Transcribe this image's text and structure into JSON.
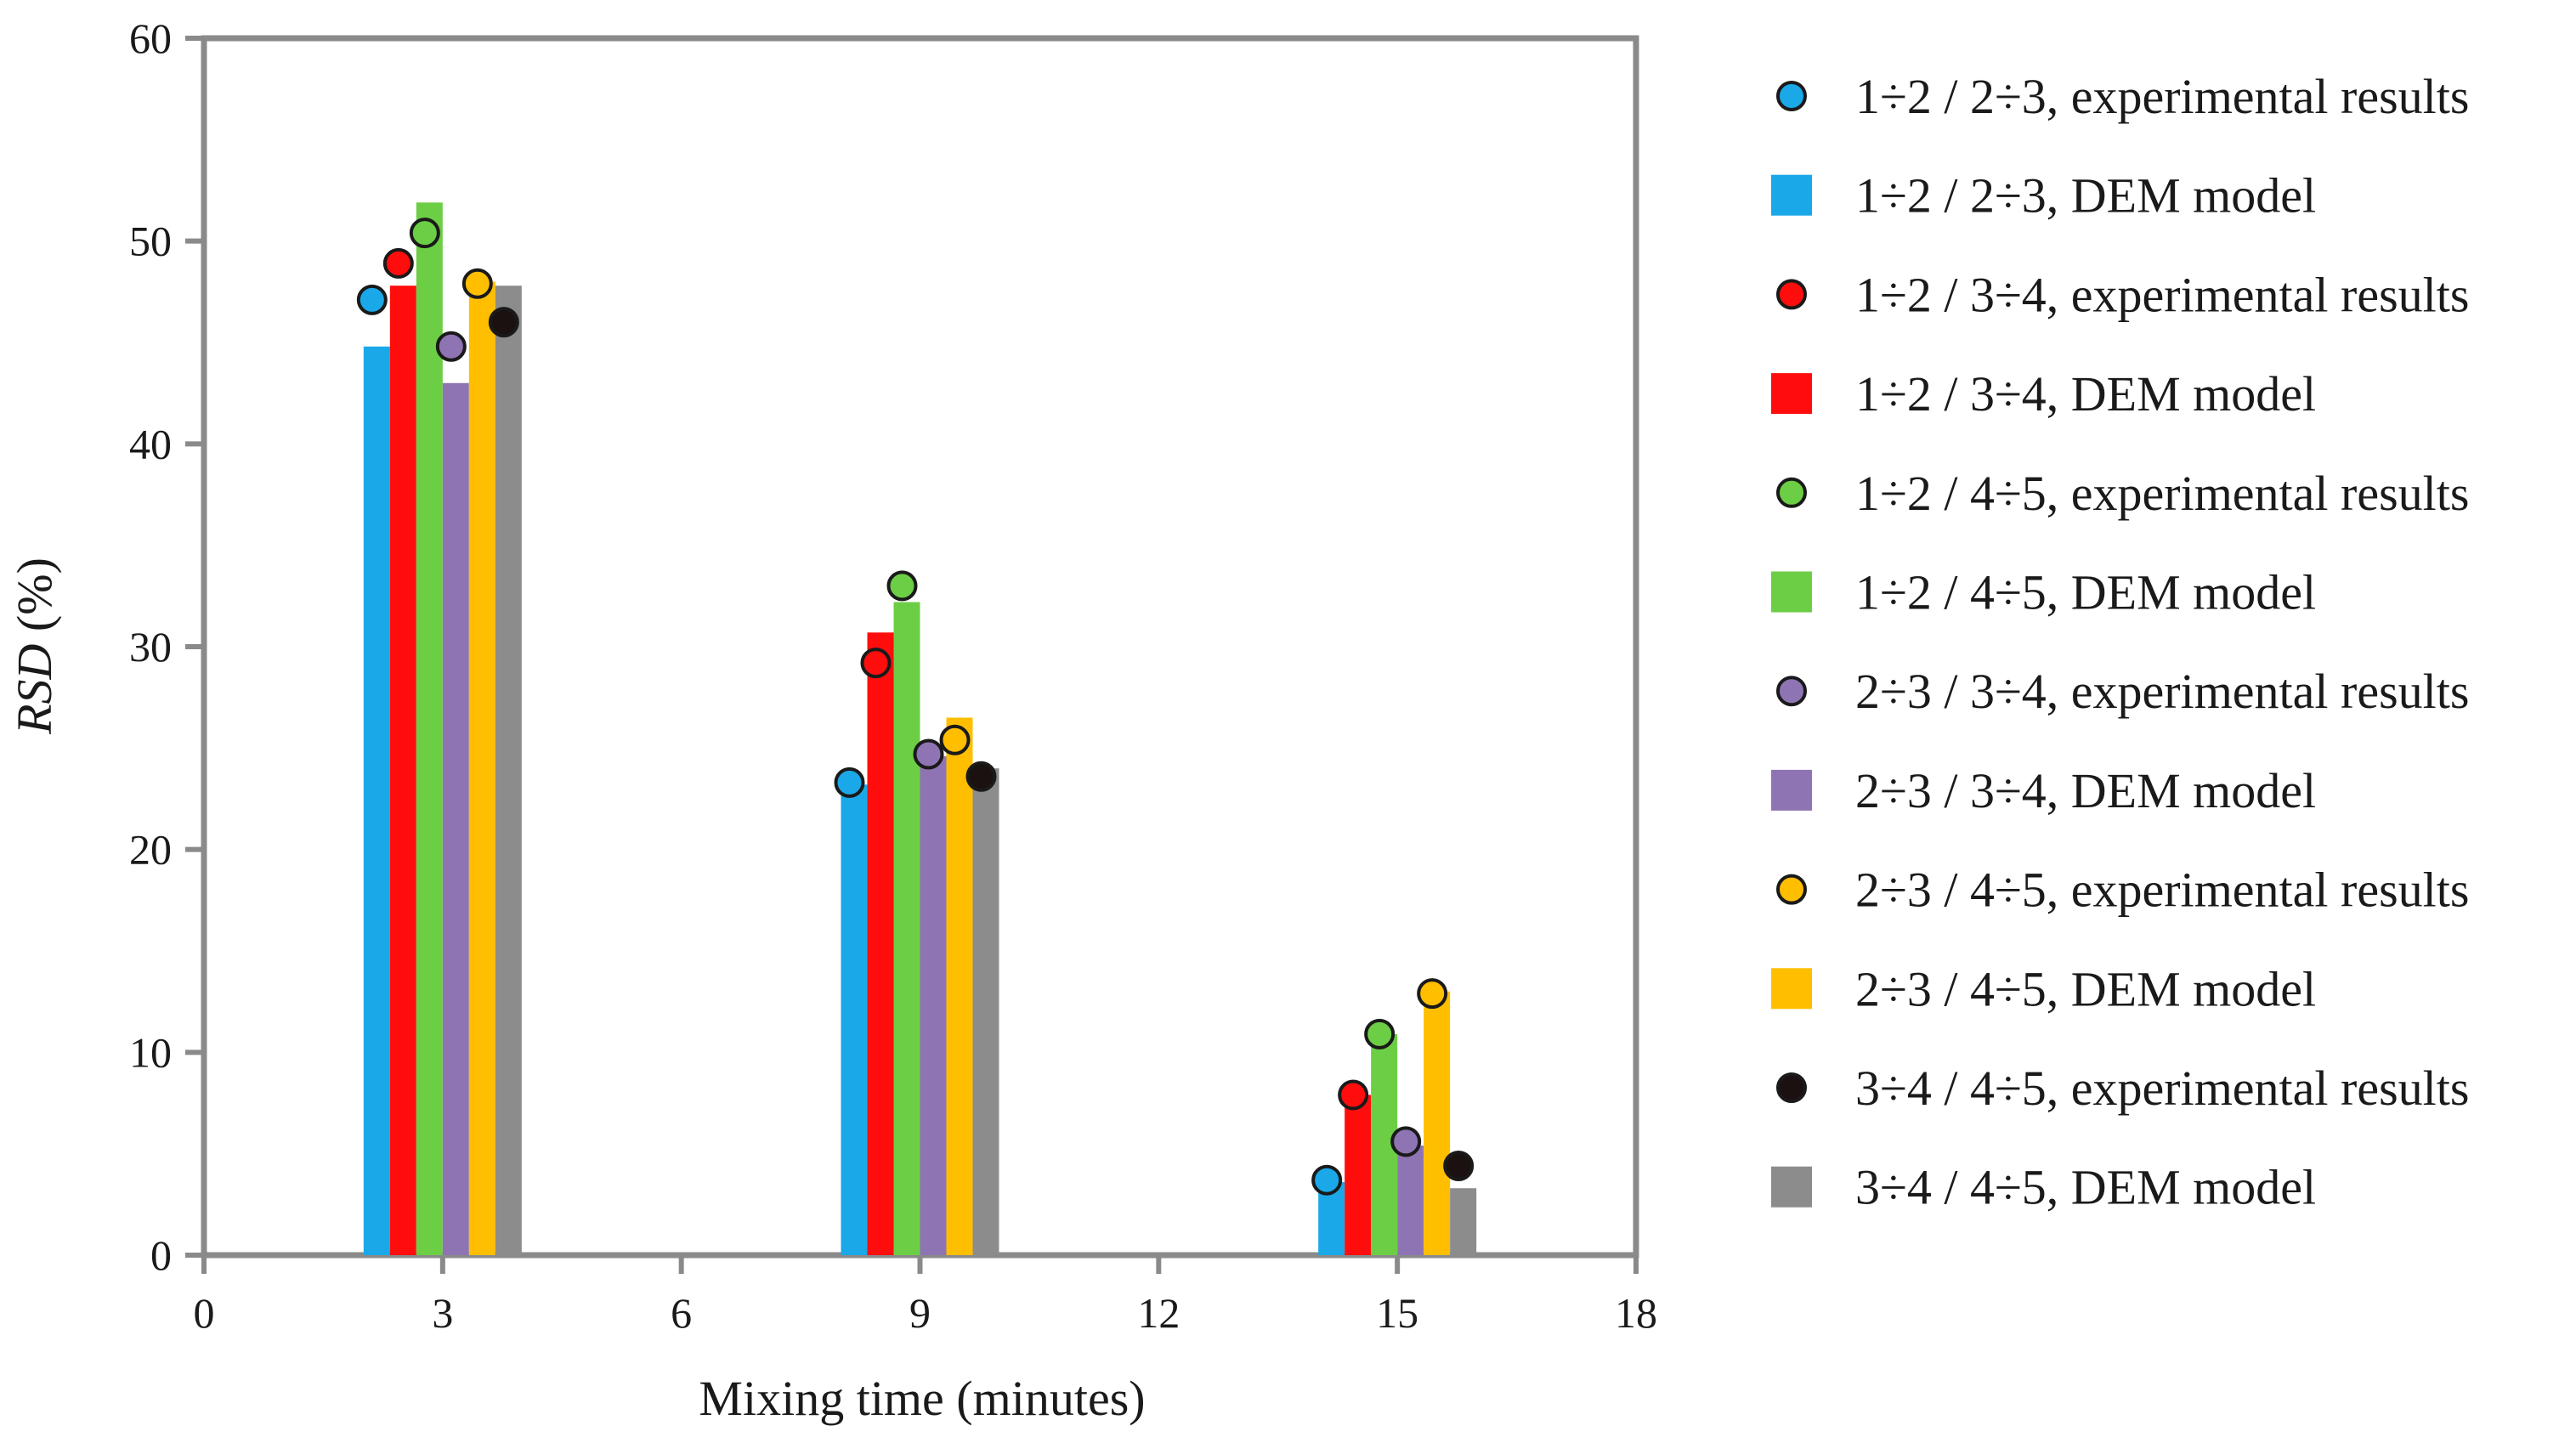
{
  "chart_data": {
    "type": "bar",
    "xlabel": "Mixing time (minutes)",
    "ylabel_italic": "RSD",
    "ylabel_unit": " (%)",
    "xlim": [
      0,
      18
    ],
    "ylim": [
      0,
      60
    ],
    "x_ticks": [
      0,
      3,
      6,
      9,
      12,
      15,
      18
    ],
    "y_ticks": [
      0,
      10,
      20,
      30,
      40,
      50,
      60
    ],
    "x_tick_labels": [
      "0",
      "3",
      "6",
      "9",
      "12",
      "15",
      "18"
    ],
    "y_tick_labels": [
      "0",
      "10",
      "20",
      "30",
      "40",
      "50",
      "60"
    ],
    "x": [
      3,
      9,
      15
    ],
    "series": [
      {
        "name": "1÷2 / 2÷3",
        "color": "#1aa8e8",
        "exp_label": "1÷2 / 2÷3, experimental results",
        "dem_label": "1÷2 / 2÷3, DEM model",
        "dem": [
          44.8,
          23.2,
          3.6
        ],
        "exp": [
          47.1,
          23.3,
          3.7
        ]
      },
      {
        "name": "1÷2 / 3÷4",
        "color": "#ff0d0d",
        "exp_label": "1÷2 / 3÷4, experimental results",
        "dem_label": "1÷2 / 3÷4, DEM model",
        "dem": [
          47.8,
          30.7,
          7.9
        ],
        "exp": [
          48.9,
          29.2,
          7.9
        ]
      },
      {
        "name": "1÷2 / 4÷5",
        "color": "#6cce45",
        "exp_label": "1÷2 / 4÷5, experimental results",
        "dem_label": "1÷2 / 4÷5, DEM model",
        "dem": [
          51.9,
          32.2,
          10.9
        ],
        "exp": [
          50.4,
          33.0,
          10.9
        ]
      },
      {
        "name": "2÷3 / 3÷4",
        "color": "#8f74b4",
        "exp_label": "2÷3 / 3÷4, experimental results",
        "dem_label": "2÷3 / 3÷4, DEM model",
        "dem": [
          43.0,
          24.6,
          5.4
        ],
        "exp": [
          44.8,
          24.7,
          5.6
        ]
      },
      {
        "name": "2÷3 / 4÷5",
        "color": "#ffbe00",
        "exp_label": "2÷3 / 4÷5, experimental results",
        "dem_label": "2÷3 / 4÷5, DEM model",
        "dem": [
          48.0,
          26.5,
          13.0
        ],
        "exp": [
          47.9,
          25.4,
          12.9
        ]
      },
      {
        "name": "3÷4 / 4÷5",
        "color": "#8c8c8c",
        "exp_color": "#1a1110",
        "exp_label": "3÷4 / 4÷5, experimental results",
        "dem_label": "3÷4 / 4÷5, DEM model",
        "dem": [
          47.8,
          24.0,
          3.3
        ],
        "exp": [
          46.0,
          23.6,
          4.4
        ]
      }
    ],
    "legend_position": "right",
    "grid": false
  }
}
